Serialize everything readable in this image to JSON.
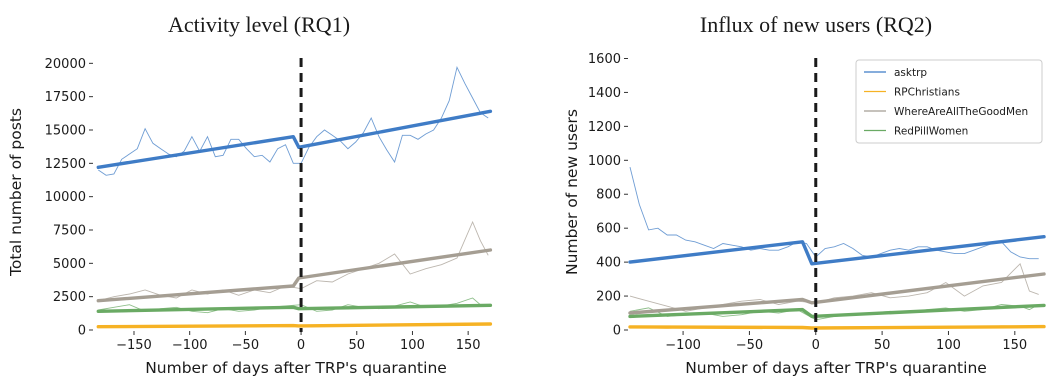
{
  "colors": {
    "asktrp": "#3f7cc6",
    "RPChristians": "#f6b224",
    "WhereAreAllTheGoodMen": "#a59e93",
    "RedPillWomen": "#6aaa64",
    "quarantine_line": "#1a1a1a"
  },
  "chart_data": [
    {
      "type": "line",
      "title": "Activity level (RQ1)",
      "xlabel": "Number of days after TRP's quarantine",
      "ylabel": "Total number of posts",
      "xlim": [
        -185,
        175
      ],
      "ylim": [
        0,
        21000
      ],
      "xticks": [
        -150,
        -100,
        -50,
        0,
        50,
        100,
        150
      ],
      "xtick_labels": [
        "−150",
        "−100",
        "−50",
        "0",
        "50",
        "100",
        "150"
      ],
      "yticks": [
        0,
        2500,
        5000,
        7500,
        10000,
        12500,
        15000,
        17500,
        20000
      ],
      "ytick_labels": [
        "0",
        "2500",
        "5000",
        "7500",
        "10000",
        "12500",
        "15000",
        "17500",
        "20000"
      ],
      "grid": false,
      "quarantine_x": 0,
      "series": [
        {
          "key": "asktrp",
          "raw_x": [
            -182,
            -175,
            -168,
            -161,
            -154,
            -147,
            -140,
            -133,
            -126,
            -119,
            -112,
            -105,
            -98,
            -91,
            -84,
            -77,
            -70,
            -63,
            -56,
            -49,
            -42,
            -35,
            -28,
            -21,
            -14,
            -7,
            0,
            7,
            14,
            21,
            28,
            35,
            42,
            49,
            56,
            63,
            70,
            77,
            84,
            91,
            98,
            105,
            112,
            119,
            126,
            133,
            140,
            147,
            154,
            161,
            168
          ],
          "raw_y": [
            12000,
            11600,
            11700,
            12800,
            13200,
            13600,
            15100,
            14000,
            13600,
            13200,
            13000,
            13400,
            14500,
            13400,
            14500,
            13000,
            13100,
            14300,
            14300,
            13600,
            13000,
            13100,
            12600,
            13600,
            13900,
            12500,
            12500,
            13700,
            14500,
            15000,
            14600,
            14200,
            13600,
            14100,
            14800,
            15900,
            14500,
            13500,
            12600,
            14600,
            14600,
            14300,
            14700,
            15000,
            15900,
            17200,
            19700,
            18500,
            17400,
            16300,
            15900
          ],
          "trend_x": [
            -182,
            -7,
            -2,
            170
          ],
          "trend_y": [
            12200,
            14500,
            13700,
            16400
          ]
        },
        {
          "key": "RPChristians",
          "raw_x": [
            -182,
            -161,
            -140,
            -119,
            -98,
            -77,
            -56,
            -35,
            -14,
            0,
            21,
            42,
            63,
            84,
            105,
            126,
            147,
            168
          ],
          "raw_y": [
            250,
            300,
            280,
            260,
            300,
            280,
            320,
            300,
            330,
            300,
            350,
            330,
            380,
            360,
            450,
            420,
            480,
            520
          ],
          "trend_x": [
            -182,
            -7,
            -2,
            170
          ],
          "trend_y": [
            250,
            330,
            310,
            450
          ]
        },
        {
          "key": "WhereAreAllTheGoodMen",
          "raw_x": [
            -182,
            -168,
            -154,
            -140,
            -126,
            -112,
            -98,
            -84,
            -70,
            -56,
            -42,
            -28,
            -14,
            0,
            14,
            28,
            42,
            56,
            70,
            84,
            98,
            112,
            126,
            140,
            154,
            161,
            168
          ],
          "raw_y": [
            2200,
            2500,
            2700,
            3000,
            2600,
            2400,
            3000,
            2700,
            3000,
            2600,
            3000,
            2800,
            3300,
            3100,
            3700,
            3600,
            4200,
            4600,
            5000,
            5700,
            4200,
            4600,
            4900,
            5400,
            8100,
            6700,
            5600
          ],
          "trend_x": [
            -182,
            -7,
            -2,
            170
          ],
          "trend_y": [
            2200,
            3300,
            3900,
            6000
          ]
        },
        {
          "key": "RedPillWomen",
          "raw_x": [
            -182,
            -168,
            -154,
            -140,
            -126,
            -112,
            -98,
            -84,
            -70,
            -56,
            -42,
            -28,
            -14,
            0,
            14,
            28,
            42,
            56,
            70,
            84,
            98,
            112,
            126,
            140,
            154,
            161,
            168
          ],
          "raw_y": [
            1500,
            1700,
            1900,
            1400,
            1600,
            1700,
            1400,
            1300,
            1600,
            1400,
            1500,
            1700,
            1800,
            1900,
            1400,
            1500,
            1900,
            1700,
            1600,
            1800,
            2100,
            1700,
            1800,
            2000,
            2400,
            1900,
            1800
          ],
          "trend_x": [
            -182,
            -7,
            -2,
            170
          ],
          "trend_y": [
            1400,
            1700,
            1600,
            1850
          ]
        }
      ]
    },
    {
      "type": "line",
      "title": "Influx of new users (RQ2)",
      "xlabel": "Number of days after TRP's quarantine",
      "ylabel": "Number of new users",
      "xlim": [
        -140,
        172
      ],
      "ylim": [
        0,
        1650
      ],
      "xticks": [
        -100,
        -50,
        0,
        50,
        100,
        150
      ],
      "xtick_labels": [
        "−100",
        "−50",
        "0",
        "50",
        "100",
        "150"
      ],
      "yticks": [
        0,
        200,
        400,
        600,
        800,
        1000,
        1200,
        1400,
        1600
      ],
      "ytick_labels": [
        "0",
        "200",
        "400",
        "600",
        "800",
        "1000",
        "1200",
        "1400",
        "1600"
      ],
      "grid": false,
      "legend_position": "top-right",
      "legend": [
        "asktrp",
        "RPChristians",
        "WhereAreAllTheGoodMen",
        "RedPillWomen"
      ],
      "quarantine_x": 0,
      "series": [
        {
          "key": "asktrp",
          "name": "asktrp",
          "raw_x": [
            -140,
            -133,
            -126,
            -119,
            -112,
            -105,
            -98,
            -91,
            -84,
            -77,
            -70,
            -63,
            -56,
            -49,
            -42,
            -35,
            -28,
            -21,
            -14,
            -7,
            0,
            7,
            14,
            21,
            28,
            35,
            42,
            49,
            56,
            63,
            70,
            77,
            84,
            91,
            98,
            105,
            112,
            119,
            126,
            133,
            140,
            147,
            154,
            161,
            168
          ],
          "raw_y": [
            960,
            740,
            590,
            600,
            560,
            560,
            530,
            520,
            500,
            480,
            510,
            500,
            490,
            470,
            480,
            470,
            470,
            490,
            520,
            510,
            430,
            480,
            490,
            510,
            480,
            440,
            430,
            450,
            470,
            480,
            470,
            490,
            490,
            470,
            460,
            450,
            450,
            470,
            490,
            510,
            520,
            460,
            430,
            420,
            420
          ],
          "trend_x": [
            -140,
            -10,
            -3,
            172
          ],
          "trend_y": [
            400,
            520,
            390,
            550
          ]
        },
        {
          "key": "RPChristians",
          "name": "RPChristians",
          "raw_x": [
            -140,
            -112,
            -84,
            -56,
            -28,
            0,
            28,
            56,
            84,
            112,
            140,
            168
          ],
          "raw_y": [
            15,
            10,
            20,
            15,
            12,
            10,
            15,
            18,
            20,
            15,
            25,
            20
          ],
          "trend_x": [
            -140,
            -10,
            -3,
            172
          ],
          "trend_y": [
            18,
            15,
            12,
            20
          ]
        },
        {
          "key": "WhereAreAllTheGoodMen",
          "name": "WhereAreAllTheGoodMen",
          "raw_x": [
            -140,
            -126,
            -112,
            -98,
            -84,
            -70,
            -56,
            -42,
            -28,
            -14,
            0,
            14,
            28,
            42,
            56,
            70,
            84,
            98,
            112,
            126,
            140,
            154,
            161,
            168
          ],
          "raw_y": [
            200,
            170,
            140,
            110,
            130,
            150,
            170,
            180,
            150,
            170,
            160,
            190,
            200,
            220,
            190,
            200,
            220,
            280,
            200,
            260,
            280,
            390,
            230,
            210
          ],
          "trend_x": [
            -140,
            -10,
            -3,
            172
          ],
          "trend_y": [
            100,
            180,
            160,
            330
          ]
        },
        {
          "key": "RedPillWomen",
          "name": "RedPillWomen",
          "raw_x": [
            -140,
            -126,
            -112,
            -98,
            -84,
            -70,
            -56,
            -42,
            -28,
            -14,
            0,
            14,
            28,
            42,
            56,
            70,
            84,
            98,
            112,
            126,
            140,
            154,
            161,
            168
          ],
          "raw_y": [
            110,
            130,
            80,
            90,
            100,
            80,
            90,
            110,
            100,
            120,
            60,
            80,
            90,
            100,
            110,
            100,
            120,
            130,
            110,
            120,
            150,
            140,
            120,
            150
          ],
          "trend_x": [
            -140,
            -10,
            -3,
            172
          ],
          "trend_y": [
            80,
            120,
            80,
            145
          ]
        }
      ]
    }
  ]
}
